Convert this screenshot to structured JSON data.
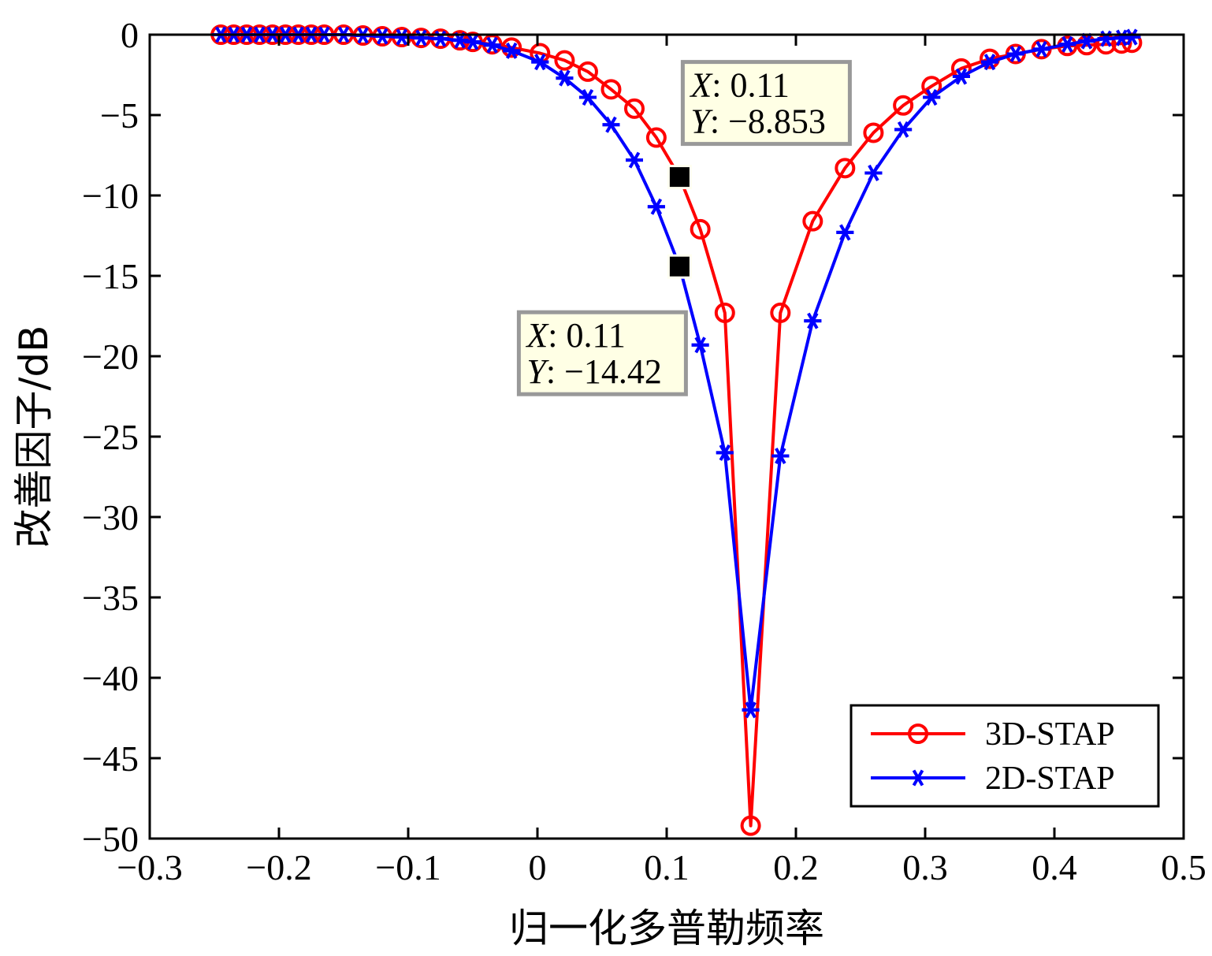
{
  "chart_data": {
    "type": "line",
    "title": "",
    "xlabel": "归一化多普勒频率",
    "ylabel": "改善因子/dB",
    "xlim": [
      -0.3,
      0.5
    ],
    "ylim": [
      -50,
      0
    ],
    "xticks": [
      -0.3,
      -0.2,
      -0.1,
      0,
      0.1,
      0.2,
      0.3,
      0.4,
      0.5
    ],
    "yticks": [
      0,
      -5,
      -10,
      -15,
      -20,
      -25,
      -30,
      -35,
      -40,
      -45,
      -50
    ],
    "xtick_labels": [
      "−0.3",
      "−0.2",
      "−0.1",
      "0",
      "0.1",
      "0.2",
      "0.3",
      "0.4",
      "0.5"
    ],
    "ytick_labels": [
      "0",
      "−5",
      "−10",
      "−15",
      "−20",
      "−25",
      "−30",
      "−35",
      "−40",
      "−45",
      "−50"
    ],
    "grid": false,
    "legend_position": "bottom-right",
    "series": [
      {
        "name": "3D-STAP",
        "color": "#ff0000",
        "marker": "circle",
        "x": [
          -0.245,
          -0.235,
          -0.225,
          -0.215,
          -0.205,
          -0.195,
          -0.185,
          -0.175,
          -0.165,
          -0.15,
          -0.135,
          -0.12,
          -0.105,
          -0.09,
          -0.075,
          -0.06,
          -0.05,
          -0.035,
          -0.02,
          0.002,
          0.021,
          0.039,
          0.057,
          0.075,
          0.092,
          0.11,
          0.126,
          0.145,
          0.165,
          0.188,
          0.213,
          0.238,
          0.26,
          0.283,
          0.305,
          0.328,
          0.35,
          0.37,
          0.39,
          0.41,
          0.425,
          0.44,
          0.452,
          0.46
        ],
        "y": [
          0,
          0,
          0,
          0,
          0,
          0,
          0,
          0,
          0,
          0,
          -0.05,
          -0.1,
          -0.15,
          -0.2,
          -0.25,
          -0.35,
          -0.45,
          -0.6,
          -0.8,
          -1.15,
          -1.6,
          -2.3,
          -3.4,
          -4.6,
          -6.4,
          -8.853,
          -12.1,
          -17.3,
          -49.2,
          -17.3,
          -11.6,
          -8.3,
          -6.1,
          -4.4,
          -3.2,
          -2.1,
          -1.5,
          -1.2,
          -0.9,
          -0.7,
          -0.65,
          -0.6,
          -0.55,
          -0.5
        ]
      },
      {
        "name": "2D-STAP",
        "color": "#0000ff",
        "marker": "asterisk",
        "x": [
          -0.245,
          -0.235,
          -0.225,
          -0.215,
          -0.205,
          -0.195,
          -0.185,
          -0.175,
          -0.165,
          -0.15,
          -0.135,
          -0.12,
          -0.105,
          -0.09,
          -0.075,
          -0.06,
          -0.05,
          -0.035,
          -0.02,
          0.002,
          0.021,
          0.039,
          0.057,
          0.075,
          0.092,
          0.11,
          0.126,
          0.145,
          0.165,
          0.188,
          0.213,
          0.238,
          0.26,
          0.283,
          0.305,
          0.328,
          0.35,
          0.37,
          0.39,
          0.41,
          0.425,
          0.44,
          0.452,
          0.46
        ],
        "y": [
          0,
          0,
          0,
          0,
          0,
          0,
          0,
          0,
          0,
          0,
          -0.05,
          -0.1,
          -0.15,
          -0.2,
          -0.25,
          -0.35,
          -0.45,
          -0.65,
          -1.0,
          -1.7,
          -2.7,
          -3.9,
          -5.6,
          -7.8,
          -10.7,
          -14.42,
          -19.3,
          -26.0,
          -42.0,
          -26.2,
          -17.8,
          -12.3,
          -8.6,
          -5.9,
          -3.9,
          -2.6,
          -1.7,
          -1.2,
          -0.9,
          -0.6,
          -0.4,
          -0.25,
          -0.2,
          -0.15
        ]
      }
    ],
    "datatips": [
      {
        "x_label": "X",
        "x_value": ": 0.11",
        "y_label": "Y",
        "y_value": ": −8.853",
        "point": [
          0.11,
          -8.853
        ],
        "anchor": "top-right"
      },
      {
        "x_label": "X",
        "x_value": ": 0.11",
        "y_label": "Y",
        "y_value": ": −14.42",
        "point": [
          0.11,
          -14.42
        ],
        "anchor": "bottom-left"
      }
    ]
  }
}
